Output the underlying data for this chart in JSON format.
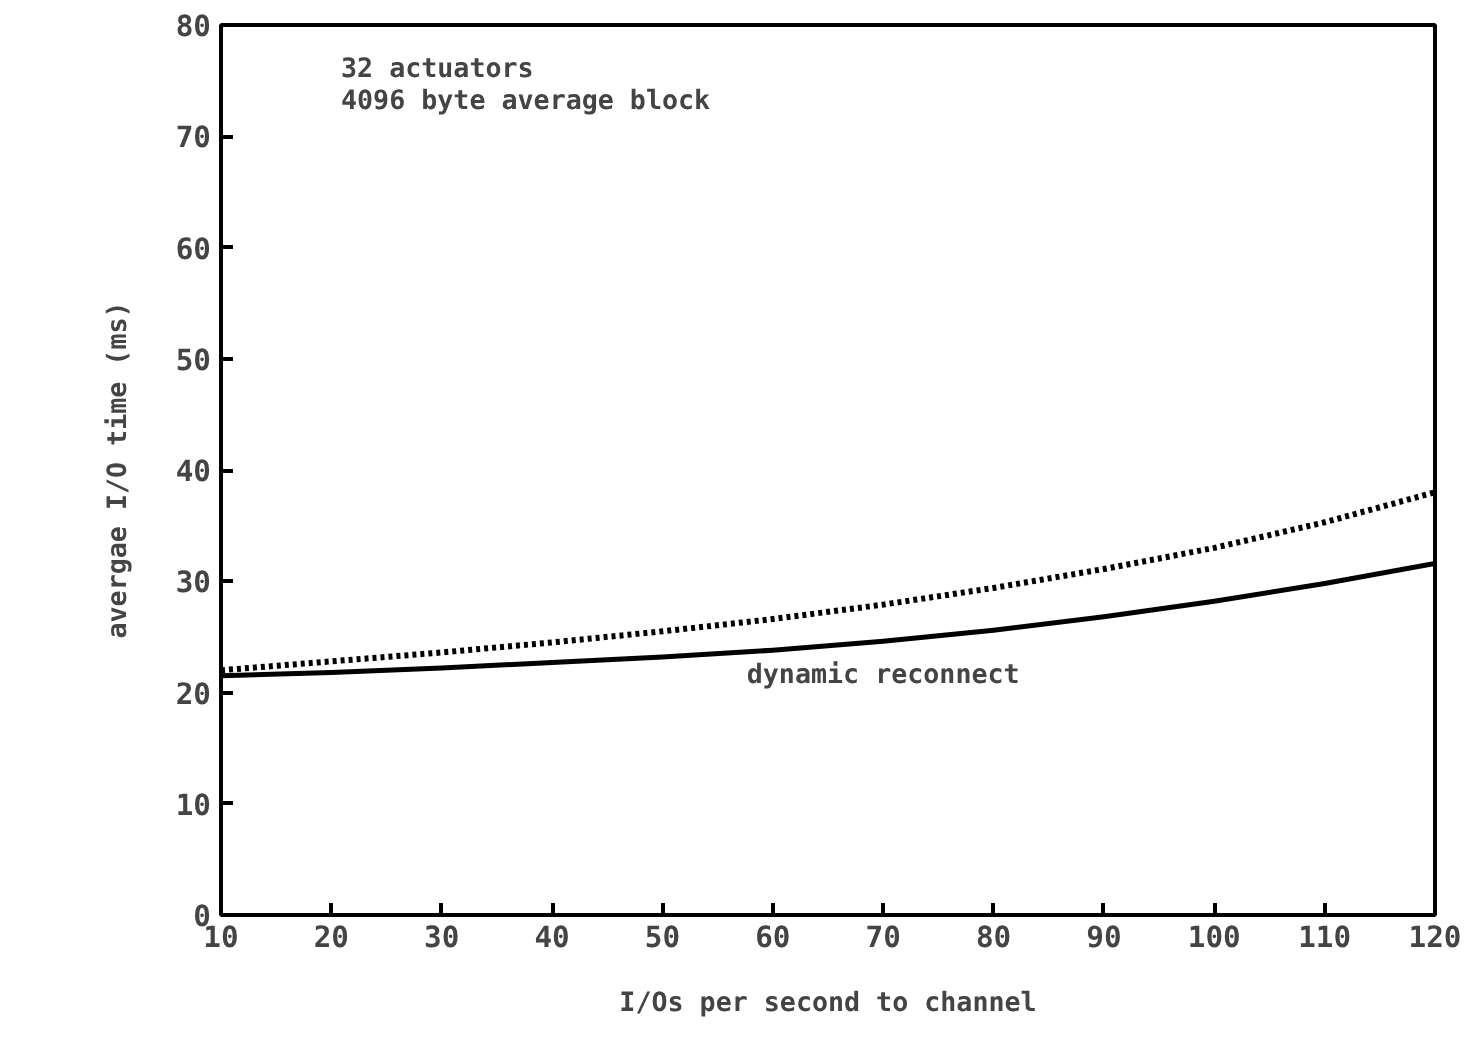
{
  "chart_data": {
    "type": "line",
    "xlabel": "I/Os per second to channel",
    "ylabel": "avergae I/O time (ms)",
    "x": [
      10,
      20,
      30,
      40,
      50,
      60,
      70,
      80,
      90,
      100,
      110,
      120
    ],
    "series": [
      {
        "name": "dynamic reconnect",
        "color": "#000000",
        "line_style": "solid",
        "values": [
          21.5,
          21.8,
          22.2,
          22.7,
          23.2,
          23.8,
          24.6,
          25.6,
          26.8,
          28.2,
          29.8,
          31.6
        ]
      },
      {
        "color": "#000000",
        "line_style": "dotted",
        "values": [
          22,
          22.8,
          23.6,
          24.5,
          25.5,
          26.6,
          27.9,
          29.4,
          31.1,
          33.0,
          35.3,
          38.0
        ]
      }
    ],
    "annotations": [
      "32 actuators",
      "4096 byte average block"
    ],
    "xlim": [
      10,
      120
    ],
    "xticks": [
      10,
      20,
      30,
      40,
      50,
      60,
      70,
      80,
      90,
      100,
      110,
      120
    ],
    "ylim": [
      0,
      80
    ],
    "yticks": [
      0,
      10,
      20,
      30,
      40,
      50,
      60,
      70,
      80
    ],
    "grid": false,
    "marker": "none"
  }
}
